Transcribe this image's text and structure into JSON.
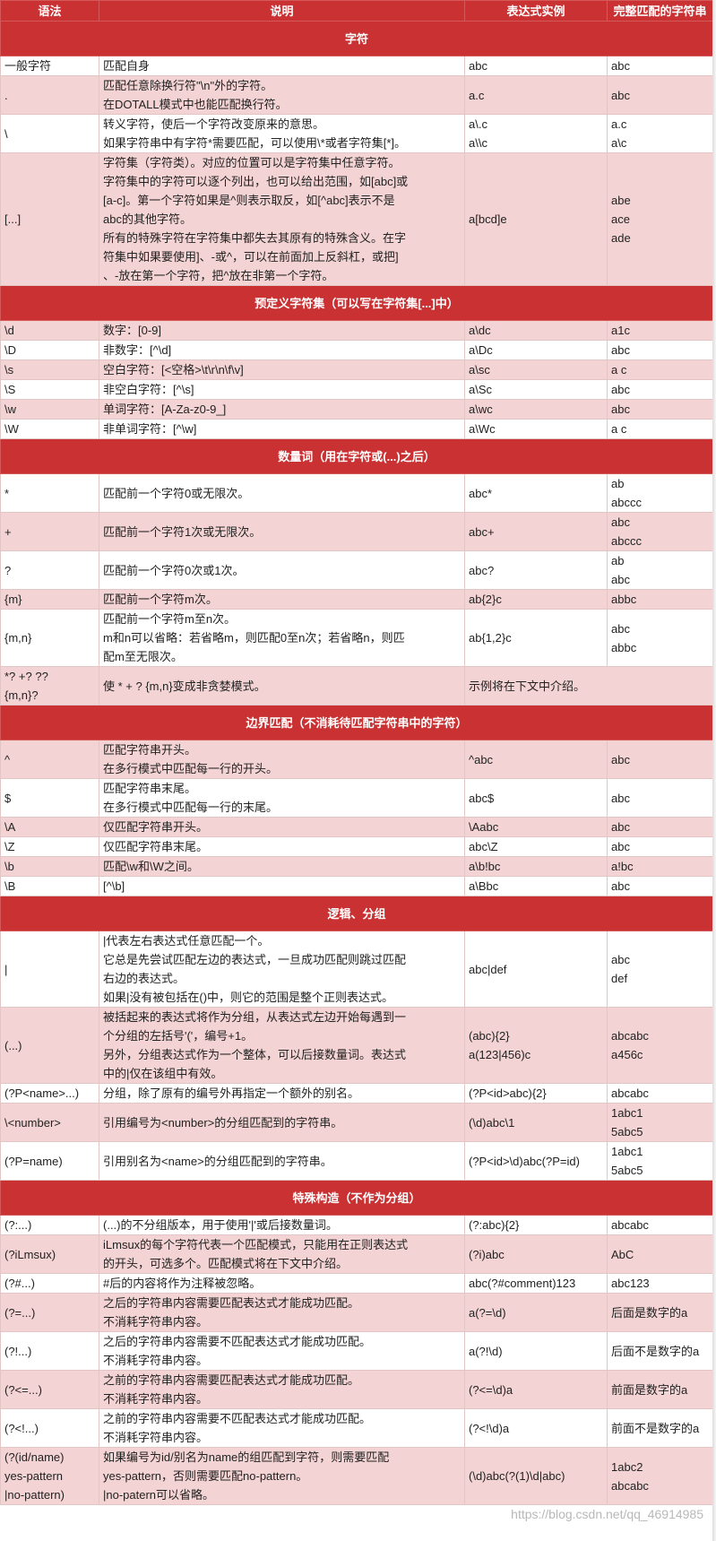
{
  "colors": {
    "header_bg": "#c93133",
    "shaded_row": "#f3d3d3",
    "plain_row": "#ffffff"
  },
  "header": {
    "syntax": "语法",
    "desc": "说明",
    "example": "表达式实例",
    "match": "完整匹配的字符串"
  },
  "sections": [
    {
      "title": "字符",
      "rows": [
        {
          "shaded": false,
          "syntax": [
            "一般字符"
          ],
          "desc": [
            "匹配自身"
          ],
          "example": [
            "abc"
          ],
          "match": [
            "abc"
          ]
        },
        {
          "shaded": true,
          "syntax": [
            "."
          ],
          "desc": [
            "匹配任意除换行符\"\\n\"外的字符。",
            "在DOTALL模式中也能匹配换行符。"
          ],
          "example": [
            "a.c"
          ],
          "match": [
            "abc"
          ]
        },
        {
          "shaded": false,
          "syntax": [
            "\\"
          ],
          "desc": [
            "转义字符，使后一个字符改变原来的意思。",
            "如果字符串中有字符*需要匹配，可以使用\\*或者字符集[*]。"
          ],
          "example": [
            "a\\.c",
            "a\\\\c"
          ],
          "match": [
            "a.c",
            "a\\c"
          ]
        },
        {
          "shaded": true,
          "syntax": [
            "[...]"
          ],
          "desc": [
            "字符集（字符类）。对应的位置可以是字符集中任意字符。",
            "字符集中的字符可以逐个列出，也可以给出范围，如[abc]或",
            "[a-c]。第一个字符如果是^则表示取反，如[^abc]表示不是",
            "abc的其他字符。",
            "所有的特殊字符在字符集中都失去其原有的特殊含义。在字",
            "符集中如果要使用]、-或^，可以在前面加上反斜杠，或把]",
            "、-放在第一个字符，把^放在非第一个字符。"
          ],
          "example": [
            "a[bcd]e"
          ],
          "match": [
            "abe",
            "ace",
            "ade"
          ]
        }
      ]
    },
    {
      "title": "预定义字符集（可以写在字符集[...]中）",
      "rows": [
        {
          "shaded": true,
          "syntax": [
            "\\d"
          ],
          "desc": [
            "数字：[0-9]"
          ],
          "example": [
            "a\\dc"
          ],
          "match": [
            "a1c"
          ]
        },
        {
          "shaded": false,
          "syntax": [
            "\\D"
          ],
          "desc": [
            "非数字：[^\\d]"
          ],
          "example": [
            "a\\Dc"
          ],
          "match": [
            "abc"
          ]
        },
        {
          "shaded": true,
          "syntax": [
            "\\s"
          ],
          "desc": [
            "空白字符：[<空格>\\t\\r\\n\\f\\v]"
          ],
          "example": [
            "a\\sc"
          ],
          "match": [
            "a c"
          ]
        },
        {
          "shaded": false,
          "syntax": [
            "\\S"
          ],
          "desc": [
            "非空白字符：[^\\s]"
          ],
          "example": [
            "a\\Sc"
          ],
          "match": [
            "abc"
          ]
        },
        {
          "shaded": true,
          "syntax": [
            "\\w"
          ],
          "desc": [
            "单词字符：[A-Za-z0-9_]"
          ],
          "example": [
            "a\\wc"
          ],
          "match": [
            "abc"
          ]
        },
        {
          "shaded": false,
          "syntax": [
            "\\W"
          ],
          "desc": [
            "非单词字符：[^\\w]"
          ],
          "example": [
            "a\\Wc"
          ],
          "match": [
            "a c"
          ]
        }
      ]
    },
    {
      "title": "数量词（用在字符或(...)之后）",
      "rows": [
        {
          "shaded": false,
          "syntax": [
            "*"
          ],
          "desc": [
            "匹配前一个字符0或无限次。"
          ],
          "example": [
            "abc*"
          ],
          "match": [
            "ab",
            "abccc"
          ]
        },
        {
          "shaded": true,
          "syntax": [
            "+"
          ],
          "desc": [
            "匹配前一个字符1次或无限次。"
          ],
          "example": [
            "abc+"
          ],
          "match": [
            "abc",
            "abccc"
          ]
        },
        {
          "shaded": false,
          "syntax": [
            "?"
          ],
          "desc": [
            "匹配前一个字符0次或1次。"
          ],
          "example": [
            "abc?"
          ],
          "match": [
            "ab",
            "abc"
          ]
        },
        {
          "shaded": true,
          "syntax": [
            "{m}"
          ],
          "desc": [
            "匹配前一个字符m次。"
          ],
          "example": [
            "ab{2}c"
          ],
          "match": [
            "abbc"
          ]
        },
        {
          "shaded": false,
          "syntax": [
            "{m,n}"
          ],
          "desc": [
            "匹配前一个字符m至n次。",
            "m和n可以省略：若省略m，则匹配0至n次；若省略n，则匹",
            "配m至无限次。"
          ],
          "example": [
            "ab{1,2}c"
          ],
          "match": [
            "abc",
            "abbc"
          ]
        },
        {
          "shaded": true,
          "syntax": [
            "*? +? ??",
            "{m,n}?"
          ],
          "desc": [
            "使 * + ? {m,n}变成非贪婪模式。"
          ],
          "example": [
            "示例将在下文中介绍。"
          ],
          "match": [],
          "span": true
        }
      ]
    },
    {
      "title": "边界匹配（不消耗待匹配字符串中的字符）",
      "rows": [
        {
          "shaded": true,
          "syntax": [
            "^"
          ],
          "desc": [
            "匹配字符串开头。",
            "在多行模式中匹配每一行的开头。"
          ],
          "example": [
            "^abc"
          ],
          "match": [
            "abc"
          ]
        },
        {
          "shaded": false,
          "syntax": [
            "$"
          ],
          "desc": [
            "匹配字符串末尾。",
            "在多行模式中匹配每一行的末尾。"
          ],
          "example": [
            "abc$"
          ],
          "match": [
            "abc"
          ]
        },
        {
          "shaded": true,
          "syntax": [
            "\\A"
          ],
          "desc": [
            "仅匹配字符串开头。"
          ],
          "example": [
            "\\Aabc"
          ],
          "match": [
            "abc"
          ]
        },
        {
          "shaded": false,
          "syntax": [
            "\\Z"
          ],
          "desc": [
            "仅匹配字符串末尾。"
          ],
          "example": [
            "abc\\Z"
          ],
          "match": [
            "abc"
          ]
        },
        {
          "shaded": true,
          "syntax": [
            "\\b"
          ],
          "desc": [
            "匹配\\w和\\W之间。"
          ],
          "example": [
            "a\\b!bc"
          ],
          "match": [
            "a!bc"
          ]
        },
        {
          "shaded": false,
          "syntax": [
            "\\B"
          ],
          "desc": [
            "[^\\b]"
          ],
          "example": [
            "a\\Bbc"
          ],
          "match": [
            "abc"
          ]
        }
      ]
    },
    {
      "title": "逻辑、分组",
      "rows": [
        {
          "shaded": false,
          "syntax": [
            "|"
          ],
          "desc": [
            "|代表左右表达式任意匹配一个。",
            "它总是先尝试匹配左边的表达式，一旦成功匹配则跳过匹配",
            "右边的表达式。",
            "如果|没有被包括在()中，则它的范围是整个正则表达式。"
          ],
          "example": [
            "abc|def"
          ],
          "match": [
            "abc",
            "def"
          ]
        },
        {
          "shaded": true,
          "syntax": [
            "(...)"
          ],
          "desc": [
            "被括起来的表达式将作为分组，从表达式左边开始每遇到一",
            "个分组的左括号'('，编号+1。",
            "另外，分组表达式作为一个整体，可以后接数量词。表达式",
            "中的|仅在该组中有效。"
          ],
          "example": [
            "(abc){2}",
            "a(123|456)c"
          ],
          "match": [
            "abcabc",
            "a456c"
          ]
        },
        {
          "shaded": false,
          "syntax": [
            "(?P<name>...)"
          ],
          "desc": [
            "分组，除了原有的编号外再指定一个额外的别名。"
          ],
          "example": [
            "(?P<id>abc){2}"
          ],
          "match": [
            "abcabc"
          ]
        },
        {
          "shaded": true,
          "syntax": [
            "\\<number>"
          ],
          "desc": [
            "引用编号为<number>的分组匹配到的字符串。"
          ],
          "example": [
            "(\\d)abc\\1"
          ],
          "match": [
            "1abc1",
            "5abc5"
          ]
        },
        {
          "shaded": false,
          "syntax": [
            "(?P=name)"
          ],
          "desc": [
            "引用别名为<name>的分组匹配到的字符串。"
          ],
          "example": [
            "(?P<id>\\d)abc(?P=id)"
          ],
          "match": [
            "1abc1",
            "5abc5"
          ]
        }
      ]
    },
    {
      "title": "特殊构造（不作为分组）",
      "rows": [
        {
          "shaded": false,
          "syntax": [
            "(?:...)"
          ],
          "desc": [
            "(...)的不分组版本，用于使用'|'或后接数量词。"
          ],
          "example": [
            "(?:abc){2}"
          ],
          "match": [
            "abcabc"
          ]
        },
        {
          "shaded": true,
          "syntax": [
            "(?iLmsux)"
          ],
          "desc": [
            "iLmsux的每个字符代表一个匹配模式，只能用在正则表达式",
            "的开头，可选多个。匹配模式将在下文中介绍。"
          ],
          "example": [
            "(?i)abc"
          ],
          "match": [
            "AbC"
          ]
        },
        {
          "shaded": false,
          "syntax": [
            "(?#...)"
          ],
          "desc": [
            "#后的内容将作为注释被忽略。"
          ],
          "example": [
            "abc(?#comment)123"
          ],
          "match": [
            "abc123"
          ]
        },
        {
          "shaded": true,
          "syntax": [
            "(?=...)"
          ],
          "desc": [
            "之后的字符串内容需要匹配表达式才能成功匹配。",
            "不消耗字符串内容。"
          ],
          "example": [
            "a(?=\\d)"
          ],
          "match": [
            "后面是数字的a"
          ]
        },
        {
          "shaded": false,
          "syntax": [
            "(?!...)"
          ],
          "desc": [
            "之后的字符串内容需要不匹配表达式才能成功匹配。",
            "不消耗字符串内容。"
          ],
          "example": [
            "a(?!\\d)"
          ],
          "match": [
            "后面不是数字的a"
          ]
        },
        {
          "shaded": true,
          "syntax": [
            "(?<=...)"
          ],
          "desc": [
            "之前的字符串内容需要匹配表达式才能成功匹配。",
            "不消耗字符串内容。"
          ],
          "example": [
            "(?<=\\d)a"
          ],
          "match": [
            "前面是数字的a"
          ]
        },
        {
          "shaded": false,
          "syntax": [
            "(?<!...)"
          ],
          "desc": [
            "之前的字符串内容需要不匹配表达式才能成功匹配。",
            "不消耗字符串内容。"
          ],
          "example": [
            "(?<!\\d)a"
          ],
          "match": [
            "前面不是数字的a"
          ]
        },
        {
          "shaded": true,
          "syntax": [
            "(?(id/name)",
            "yes-pattern",
            "|no-pattern)"
          ],
          "desc": [
            "如果编号为id/别名为name的组匹配到字符，则需要匹配",
            "yes-pattern，否则需要匹配no-pattern。",
            "|no-patern可以省略。"
          ],
          "example": [
            "(\\d)abc(?(1)\\d|abc)"
          ],
          "match": [
            "1abc2",
            "abcabc"
          ]
        }
      ]
    }
  ],
  "watermark": "https://blog.csdn.net/qq_46914985"
}
